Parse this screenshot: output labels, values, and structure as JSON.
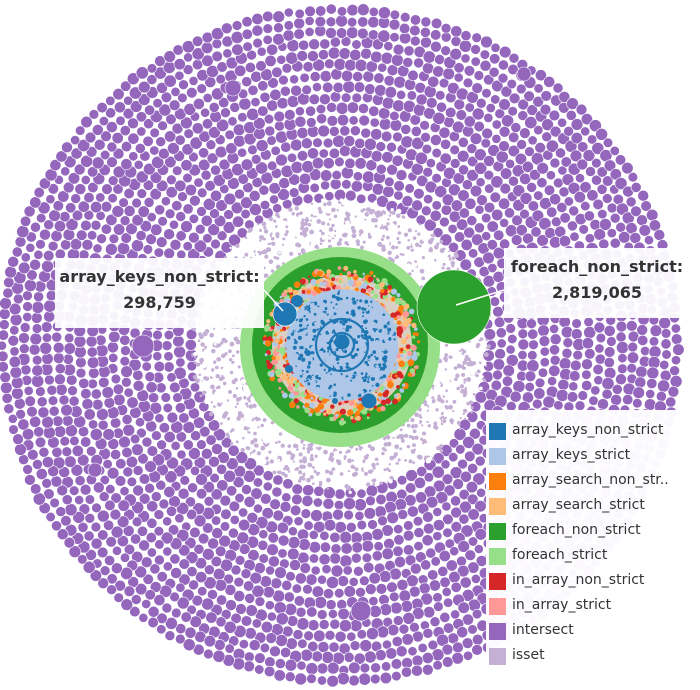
{
  "chart_data": {
    "type": "packed-bubble",
    "title": "",
    "series": [
      {
        "name": "array_keys_non_strict",
        "color": "#1f77b4"
      },
      {
        "name": "array_keys_strict",
        "color": "#aec7e8"
      },
      {
        "name": "array_search_non_str..",
        "color": "#ff7f0e"
      },
      {
        "name": "array_search_strict",
        "color": "#ffbb78"
      },
      {
        "name": "foreach_non_strict",
        "color": "#2ca02c"
      },
      {
        "name": "foreach_strict",
        "color": "#98df8a"
      },
      {
        "name": "in_array_non_strict",
        "color": "#d62728"
      },
      {
        "name": "in_array_strict",
        "color": "#ff9896"
      },
      {
        "name": "intersect",
        "color": "#9467bd"
      },
      {
        "name": "isset",
        "color": "#c5b0d5"
      }
    ],
    "annotations": [
      {
        "series": "array_keys_non_strict",
        "label": "array_keys_non_strict:",
        "value": "298,759"
      },
      {
        "series": "foreach_non_strict",
        "label": "foreach_non_strict:",
        "value": "2,819,065"
      }
    ],
    "legend_position": "bottom-right"
  }
}
